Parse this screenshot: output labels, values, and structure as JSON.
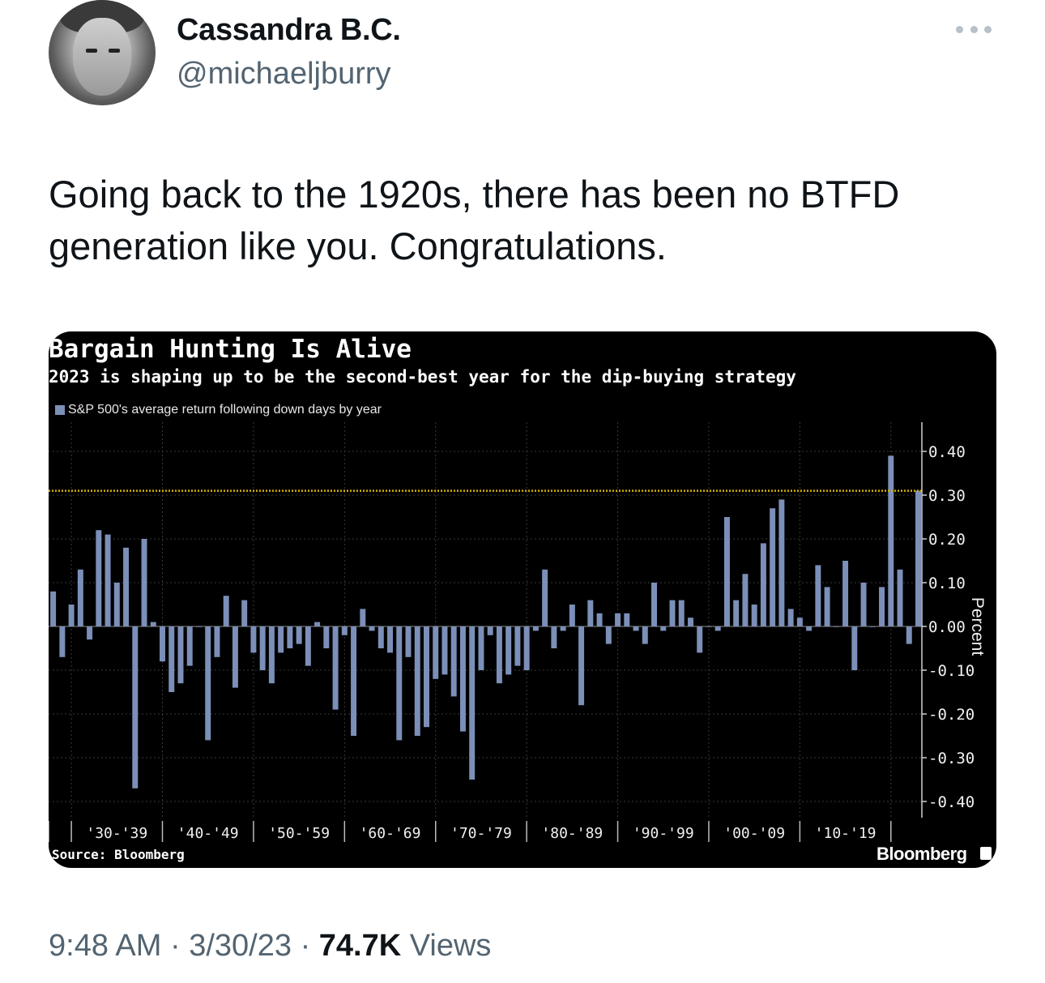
{
  "tweet": {
    "display_name": "Cassandra B.C.",
    "handle": "@michaeljburry",
    "text": "Going back to the 1920s, there has been no BTFD generation like you. Congratulations.",
    "time": "9:48 AM",
    "date": "3/30/23",
    "separator": "·",
    "views_count": "74.7K",
    "views_label": "Views"
  },
  "icons": {
    "more": "more-horizontal-icon",
    "avatar": "profile-photo",
    "brand": "bloomberg-logo-icon"
  },
  "chart_data": {
    "type": "bar",
    "title": "Bargain Hunting Is Alive",
    "subtitle": "2023 is shaping up to be the second-best year for the dip-buying strategy",
    "legend": "S&P 500's average return following down days by year",
    "ylabel": "Percent",
    "ylim": [
      -0.45,
      0.46
    ],
    "yticks": [
      "0.40",
      "0.30",
      "0.20",
      "0.10",
      "0.00",
      "-0.10",
      "-0.20",
      "-0.30",
      "-0.40"
    ],
    "ytick_values": [
      0.4,
      0.3,
      0.2,
      0.1,
      0.0,
      -0.1,
      -0.2,
      -0.3,
      -0.4
    ],
    "decade_labels": [
      "'30-'39",
      "'40-'49",
      "'50-'59",
      "'60-'69",
      "'70-'79",
      "'80-'89",
      "'90-'99",
      "'00-'09",
      "'10-'19"
    ],
    "reference_line": 0.31,
    "years": [
      1928,
      1929,
      1930,
      1931,
      1932,
      1933,
      1934,
      1935,
      1936,
      1937,
      1938,
      1939,
      1940,
      1941,
      1942,
      1943,
      1944,
      1945,
      1946,
      1947,
      1948,
      1949,
      1950,
      1951,
      1952,
      1953,
      1954,
      1955,
      1956,
      1957,
      1958,
      1959,
      1960,
      1961,
      1962,
      1963,
      1964,
      1965,
      1966,
      1967,
      1968,
      1969,
      1970,
      1971,
      1972,
      1973,
      1974,
      1975,
      1976,
      1977,
      1978,
      1979,
      1980,
      1981,
      1982,
      1983,
      1984,
      1985,
      1986,
      1987,
      1988,
      1989,
      1990,
      1991,
      1992,
      1993,
      1994,
      1995,
      1996,
      1997,
      1998,
      1999,
      2000,
      2001,
      2002,
      2003,
      2004,
      2005,
      2006,
      2007,
      2008,
      2009,
      2010,
      2011,
      2012,
      2013,
      2014,
      2015,
      2016,
      2017,
      2018,
      2019,
      2020,
      2021,
      2022,
      2023
    ],
    "values": [
      0.08,
      -0.07,
      0.05,
      0.13,
      -0.03,
      0.22,
      0.21,
      0.1,
      0.18,
      -0.37,
      0.2,
      0.01,
      -0.08,
      -0.15,
      -0.13,
      -0.09,
      0.0,
      -0.26,
      -0.07,
      0.07,
      -0.14,
      0.06,
      -0.06,
      -0.1,
      -0.13,
      -0.06,
      -0.05,
      -0.04,
      -0.09,
      0.01,
      -0.05,
      -0.19,
      -0.02,
      -0.25,
      0.04,
      -0.01,
      -0.05,
      -0.06,
      -0.26,
      -0.07,
      -0.25,
      -0.23,
      -0.12,
      -0.11,
      -0.16,
      -0.24,
      -0.35,
      -0.1,
      -0.02,
      -0.13,
      -0.11,
      -0.09,
      -0.1,
      -0.01,
      0.13,
      -0.05,
      -0.01,
      0.05,
      -0.18,
      0.06,
      0.03,
      -0.04,
      0.03,
      0.03,
      -0.01,
      -0.04,
      0.1,
      -0.01,
      0.06,
      0.06,
      0.02,
      -0.06,
      0.0,
      -0.01,
      0.25,
      0.06,
      0.12,
      0.05,
      0.19,
      0.27,
      0.29,
      0.04,
      0.02,
      -0.01,
      0.14,
      0.09,
      0.0,
      0.15,
      -0.1,
      0.1,
      0.0,
      0.09,
      0.39,
      0.13,
      -0.04,
      0.31
    ],
    "bar_color": "#7b8fb8",
    "reference_color": "#d4b000",
    "background": "#000000"
  },
  "chart_footer": {
    "source": "Source: Bloomberg",
    "brand": "Bloomberg"
  }
}
